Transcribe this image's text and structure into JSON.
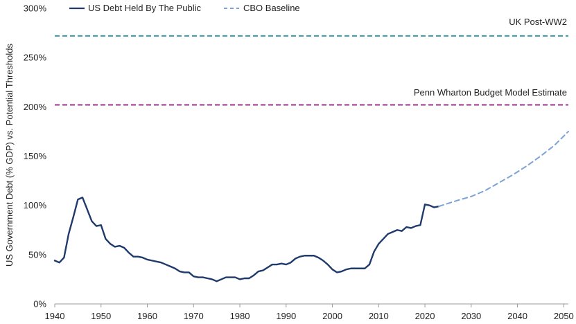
{
  "colors": {
    "debt_line": "#1f3a6b",
    "cbo_line": "#7ba3d6",
    "uk_line": "#3a9aa6",
    "penn_line": "#9b2f8e",
    "axis": "#9a9a9a",
    "text": "#222222"
  },
  "chart_data": {
    "type": "line",
    "title": "",
    "xlabel": "",
    "ylabel": "US Government Debt (% GDP) vs. Potential Thresholds",
    "xlim": [
      1940,
      2051
    ],
    "ylim": [
      0,
      300
    ],
    "x_ticks": [
      1940,
      1950,
      1960,
      1970,
      1980,
      1990,
      2000,
      2010,
      2020,
      2030,
      2040,
      2050
    ],
    "x_tick_labels": [
      "1940",
      "1950",
      "1960",
      "1970",
      "1980",
      "1990",
      "2000",
      "2010",
      "2020",
      "2030",
      "2040",
      "2050"
    ],
    "y_ticks": [
      0,
      50,
      100,
      150,
      200,
      250,
      300
    ],
    "y_tick_labels": [
      "0%",
      "50%",
      "100%",
      "150%",
      "200%",
      "250%",
      "300%"
    ],
    "legend": [
      {
        "label": "US Debt Held By The Public",
        "style": "solid"
      },
      {
        "label": "CBO Baseline",
        "style": "dashed"
      }
    ],
    "series": [
      {
        "name": "US Debt Held By The Public",
        "style": "solid",
        "points": [
          [
            1940,
            44
          ],
          [
            1941,
            42
          ],
          [
            1942,
            47
          ],
          [
            1943,
            71
          ],
          [
            1944,
            88
          ],
          [
            1945,
            106
          ],
          [
            1946,
            108
          ],
          [
            1947,
            96
          ],
          [
            1948,
            84
          ],
          [
            1949,
            79
          ],
          [
            1950,
            80
          ],
          [
            1951,
            66
          ],
          [
            1952,
            61
          ],
          [
            1953,
            58
          ],
          [
            1954,
            59
          ],
          [
            1955,
            57
          ],
          [
            1956,
            52
          ],
          [
            1957,
            48
          ],
          [
            1958,
            48
          ],
          [
            1959,
            47
          ],
          [
            1960,
            45
          ],
          [
            1961,
            44
          ],
          [
            1962,
            43
          ],
          [
            1963,
            42
          ],
          [
            1964,
            40
          ],
          [
            1965,
            38
          ],
          [
            1966,
            36
          ],
          [
            1967,
            33
          ],
          [
            1968,
            32
          ],
          [
            1969,
            32
          ],
          [
            1970,
            28
          ],
          [
            1971,
            27
          ],
          [
            1972,
            27
          ],
          [
            1973,
            26
          ],
          [
            1974,
            25
          ],
          [
            1975,
            23
          ],
          [
            1976,
            25
          ],
          [
            1977,
            27
          ],
          [
            1978,
            27
          ],
          [
            1979,
            27
          ],
          [
            1980,
            25
          ],
          [
            1981,
            26
          ],
          [
            1982,
            26
          ],
          [
            1983,
            29
          ],
          [
            1984,
            33
          ],
          [
            1985,
            34
          ],
          [
            1986,
            37
          ],
          [
            1987,
            40
          ],
          [
            1988,
            40
          ],
          [
            1989,
            41
          ],
          [
            1990,
            40
          ],
          [
            1991,
            42
          ],
          [
            1992,
            46
          ],
          [
            1993,
            48
          ],
          [
            1994,
            49
          ],
          [
            1995,
            49
          ],
          [
            1996,
            49
          ],
          [
            1997,
            47
          ],
          [
            1998,
            44
          ],
          [
            1999,
            40
          ],
          [
            2000,
            35
          ],
          [
            2001,
            32
          ],
          [
            2002,
            33
          ],
          [
            2003,
            35
          ],
          [
            2004,
            36
          ],
          [
            2005,
            36
          ],
          [
            2006,
            36
          ],
          [
            2007,
            36
          ],
          [
            2008,
            40
          ],
          [
            2009,
            53
          ],
          [
            2010,
            61
          ],
          [
            2011,
            66
          ],
          [
            2012,
            71
          ],
          [
            2013,
            73
          ],
          [
            2014,
            75
          ],
          [
            2015,
            74
          ],
          [
            2016,
            78
          ],
          [
            2017,
            77
          ],
          [
            2018,
            79
          ],
          [
            2019,
            80
          ],
          [
            2020,
            101
          ],
          [
            2021,
            100
          ],
          [
            2022,
            98
          ],
          [
            2023,
            99
          ]
        ]
      },
      {
        "name": "CBO Baseline",
        "style": "dashed",
        "points": [
          [
            2023,
            99
          ],
          [
            2025,
            102
          ],
          [
            2027,
            105
          ],
          [
            2030,
            109
          ],
          [
            2033,
            115
          ],
          [
            2036,
            123
          ],
          [
            2039,
            131
          ],
          [
            2042,
            140
          ],
          [
            2045,
            150
          ],
          [
            2048,
            161
          ],
          [
            2051,
            175
          ]
        ]
      }
    ],
    "reference_lines": [
      {
        "name": "UK Post-WW2",
        "value": 272,
        "label": "UK Post-WW2"
      },
      {
        "name": "Penn Wharton Budget Model Estimate",
        "value": 202,
        "label": "Penn Wharton Budget Model Estimate"
      }
    ]
  }
}
